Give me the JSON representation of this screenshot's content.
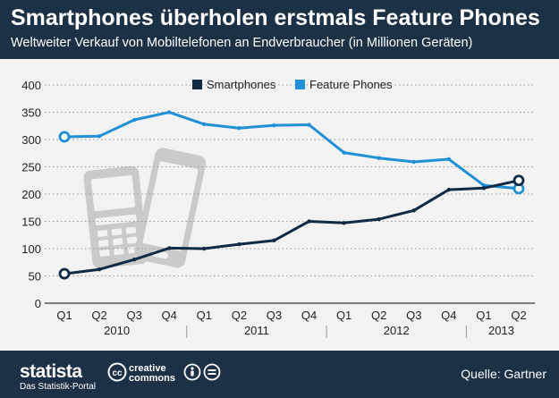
{
  "header": {
    "title": "Smartphones überholen erstmals Feature Phones",
    "subtitle": "Weltweiter Verkauf von Mobiltelefonen an Endverbraucher (in Millionen Geräten)"
  },
  "footer": {
    "brand": "statista",
    "brand_sub": "Das Statistik-Portal",
    "license_icon": "creative-commons-icon",
    "license_text_1": "creative",
    "license_text_2": "commons",
    "source": "Quelle: Gartner"
  },
  "colors": {
    "header_bg": "#1c3146",
    "smartphones": "#0e2a45",
    "feature_phones": "#1f90d6",
    "background": "#f2f2f2"
  },
  "chart_data": {
    "type": "line",
    "x": [
      "Q1",
      "Q2",
      "Q3",
      "Q4",
      "Q1",
      "Q2",
      "Q3",
      "Q4",
      "Q1",
      "Q2",
      "Q3",
      "Q4",
      "Q1",
      "Q2"
    ],
    "year_labels": [
      {
        "label": "2010",
        "index": 1.5
      },
      {
        "label": "2011",
        "index": 5.5
      },
      {
        "label": "2012",
        "index": 9.5
      },
      {
        "label": "2013",
        "index": 12.5
      }
    ],
    "series": [
      {
        "name": "Smartphones",
        "color": "#0e2a45",
        "values": [
          54,
          62,
          80,
          101,
          100,
          108,
          115,
          150,
          147,
          154,
          170,
          208,
          211,
          225
        ]
      },
      {
        "name": "Feature Phones",
        "color": "#1f90d6",
        "values": [
          305,
          306,
          336,
          350,
          328,
          321,
          326,
          327,
          276,
          266,
          259,
          264,
          216,
          210
        ]
      }
    ],
    "yticks": [
      0,
      50,
      100,
      150,
      200,
      250,
      300,
      350,
      400
    ],
    "ylim": [
      0,
      400
    ],
    "grid": true,
    "legend_position": "top"
  }
}
